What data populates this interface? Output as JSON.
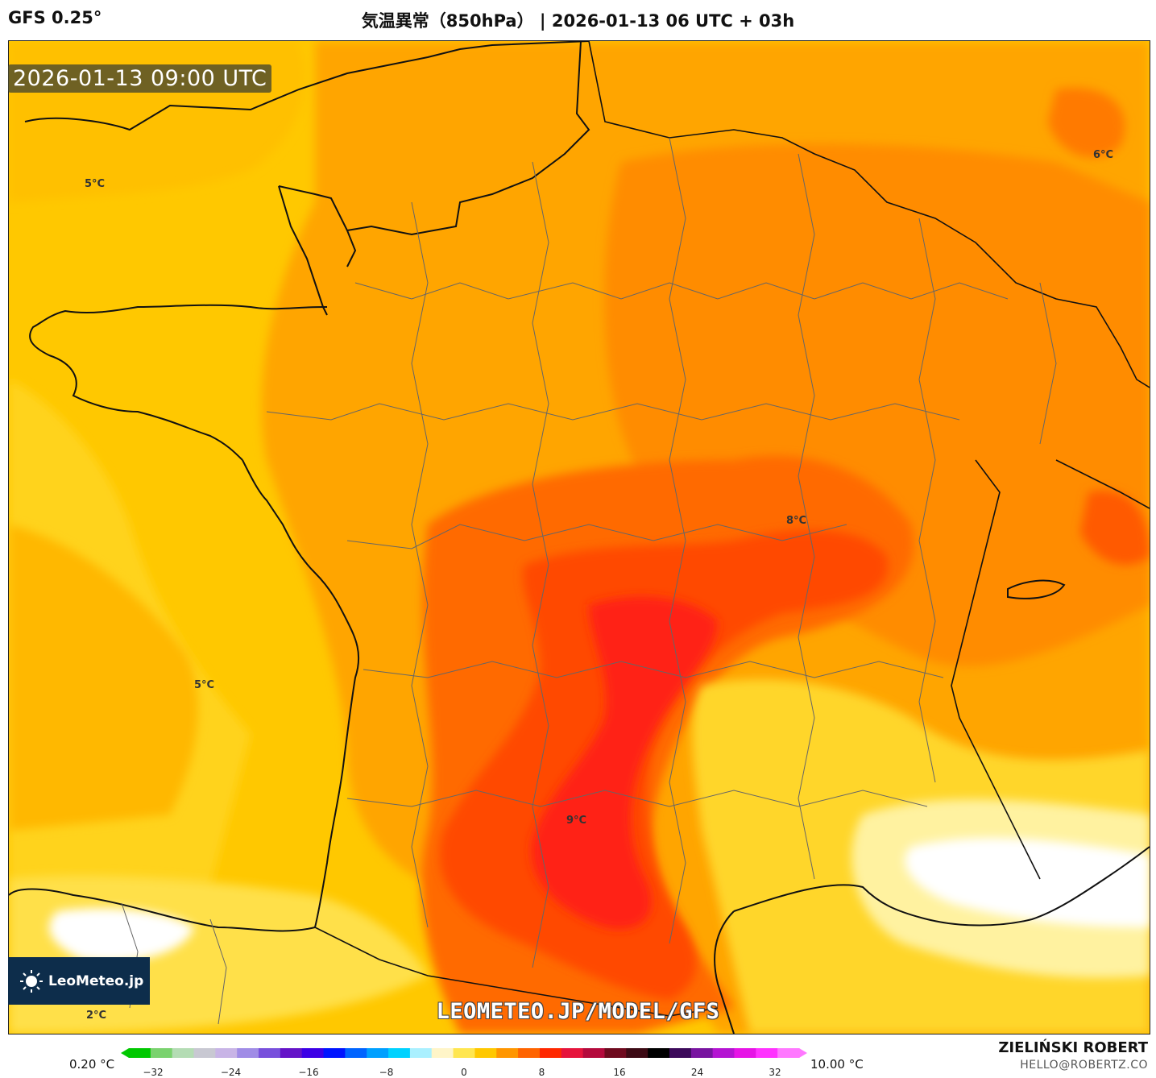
{
  "header": {
    "model": "GFS 0.25°",
    "title": "気温異常（850hPa） | 2026-01-13 06 UTC + 03h"
  },
  "map": {
    "valid_time": "2026-01-13 09:00 UTC",
    "watermark_url": "LEOMETEO.JP/MODEL/GFS",
    "logo_text": "LeoMeteo.jp",
    "contour_labels": [
      "5°C",
      "6°C",
      "5°C",
      "8°C",
      "9°C",
      "2°C"
    ],
    "colors": {
      "ocean_yellow": "#ffc800",
      "light_yellow": "#ffe24a",
      "orange": "#ff9c00",
      "dark_orange": "#ff7a00",
      "red_orange": "#ff5500",
      "red": "#ff2a10",
      "pale": "#fff3a0",
      "white": "#ffffff"
    }
  },
  "legend": {
    "min_label": "0.20 °C",
    "max_label": "10.00 °C",
    "ticks": [
      "−32",
      "−24",
      "−16",
      "−8",
      "0",
      "8",
      "16",
      "24",
      "32"
    ],
    "colors": [
      "#00c800",
      "#7ad26e",
      "#b4dcb4",
      "#c8c8d2",
      "#c8b4e6",
      "#a08ce6",
      "#7850dc",
      "#6414c8",
      "#3c00e6",
      "#0014ff",
      "#0064ff",
      "#00a0ff",
      "#00d2ff",
      "#aaf0ff",
      "#fff5c8",
      "#ffe650",
      "#ffc800",
      "#ff9600",
      "#ff6400",
      "#ff2800",
      "#e6143c",
      "#b40a3c",
      "#6e0a1e",
      "#3c0a14",
      "#000000",
      "#3c0a5a",
      "#7814a0",
      "#b414d2",
      "#e614e6",
      "#ff32ff",
      "#ff78ff"
    ]
  },
  "footer": {
    "author": "ZIELIŃSKI ROBERT",
    "email": "HELLO@ROBERTZ.CO"
  }
}
